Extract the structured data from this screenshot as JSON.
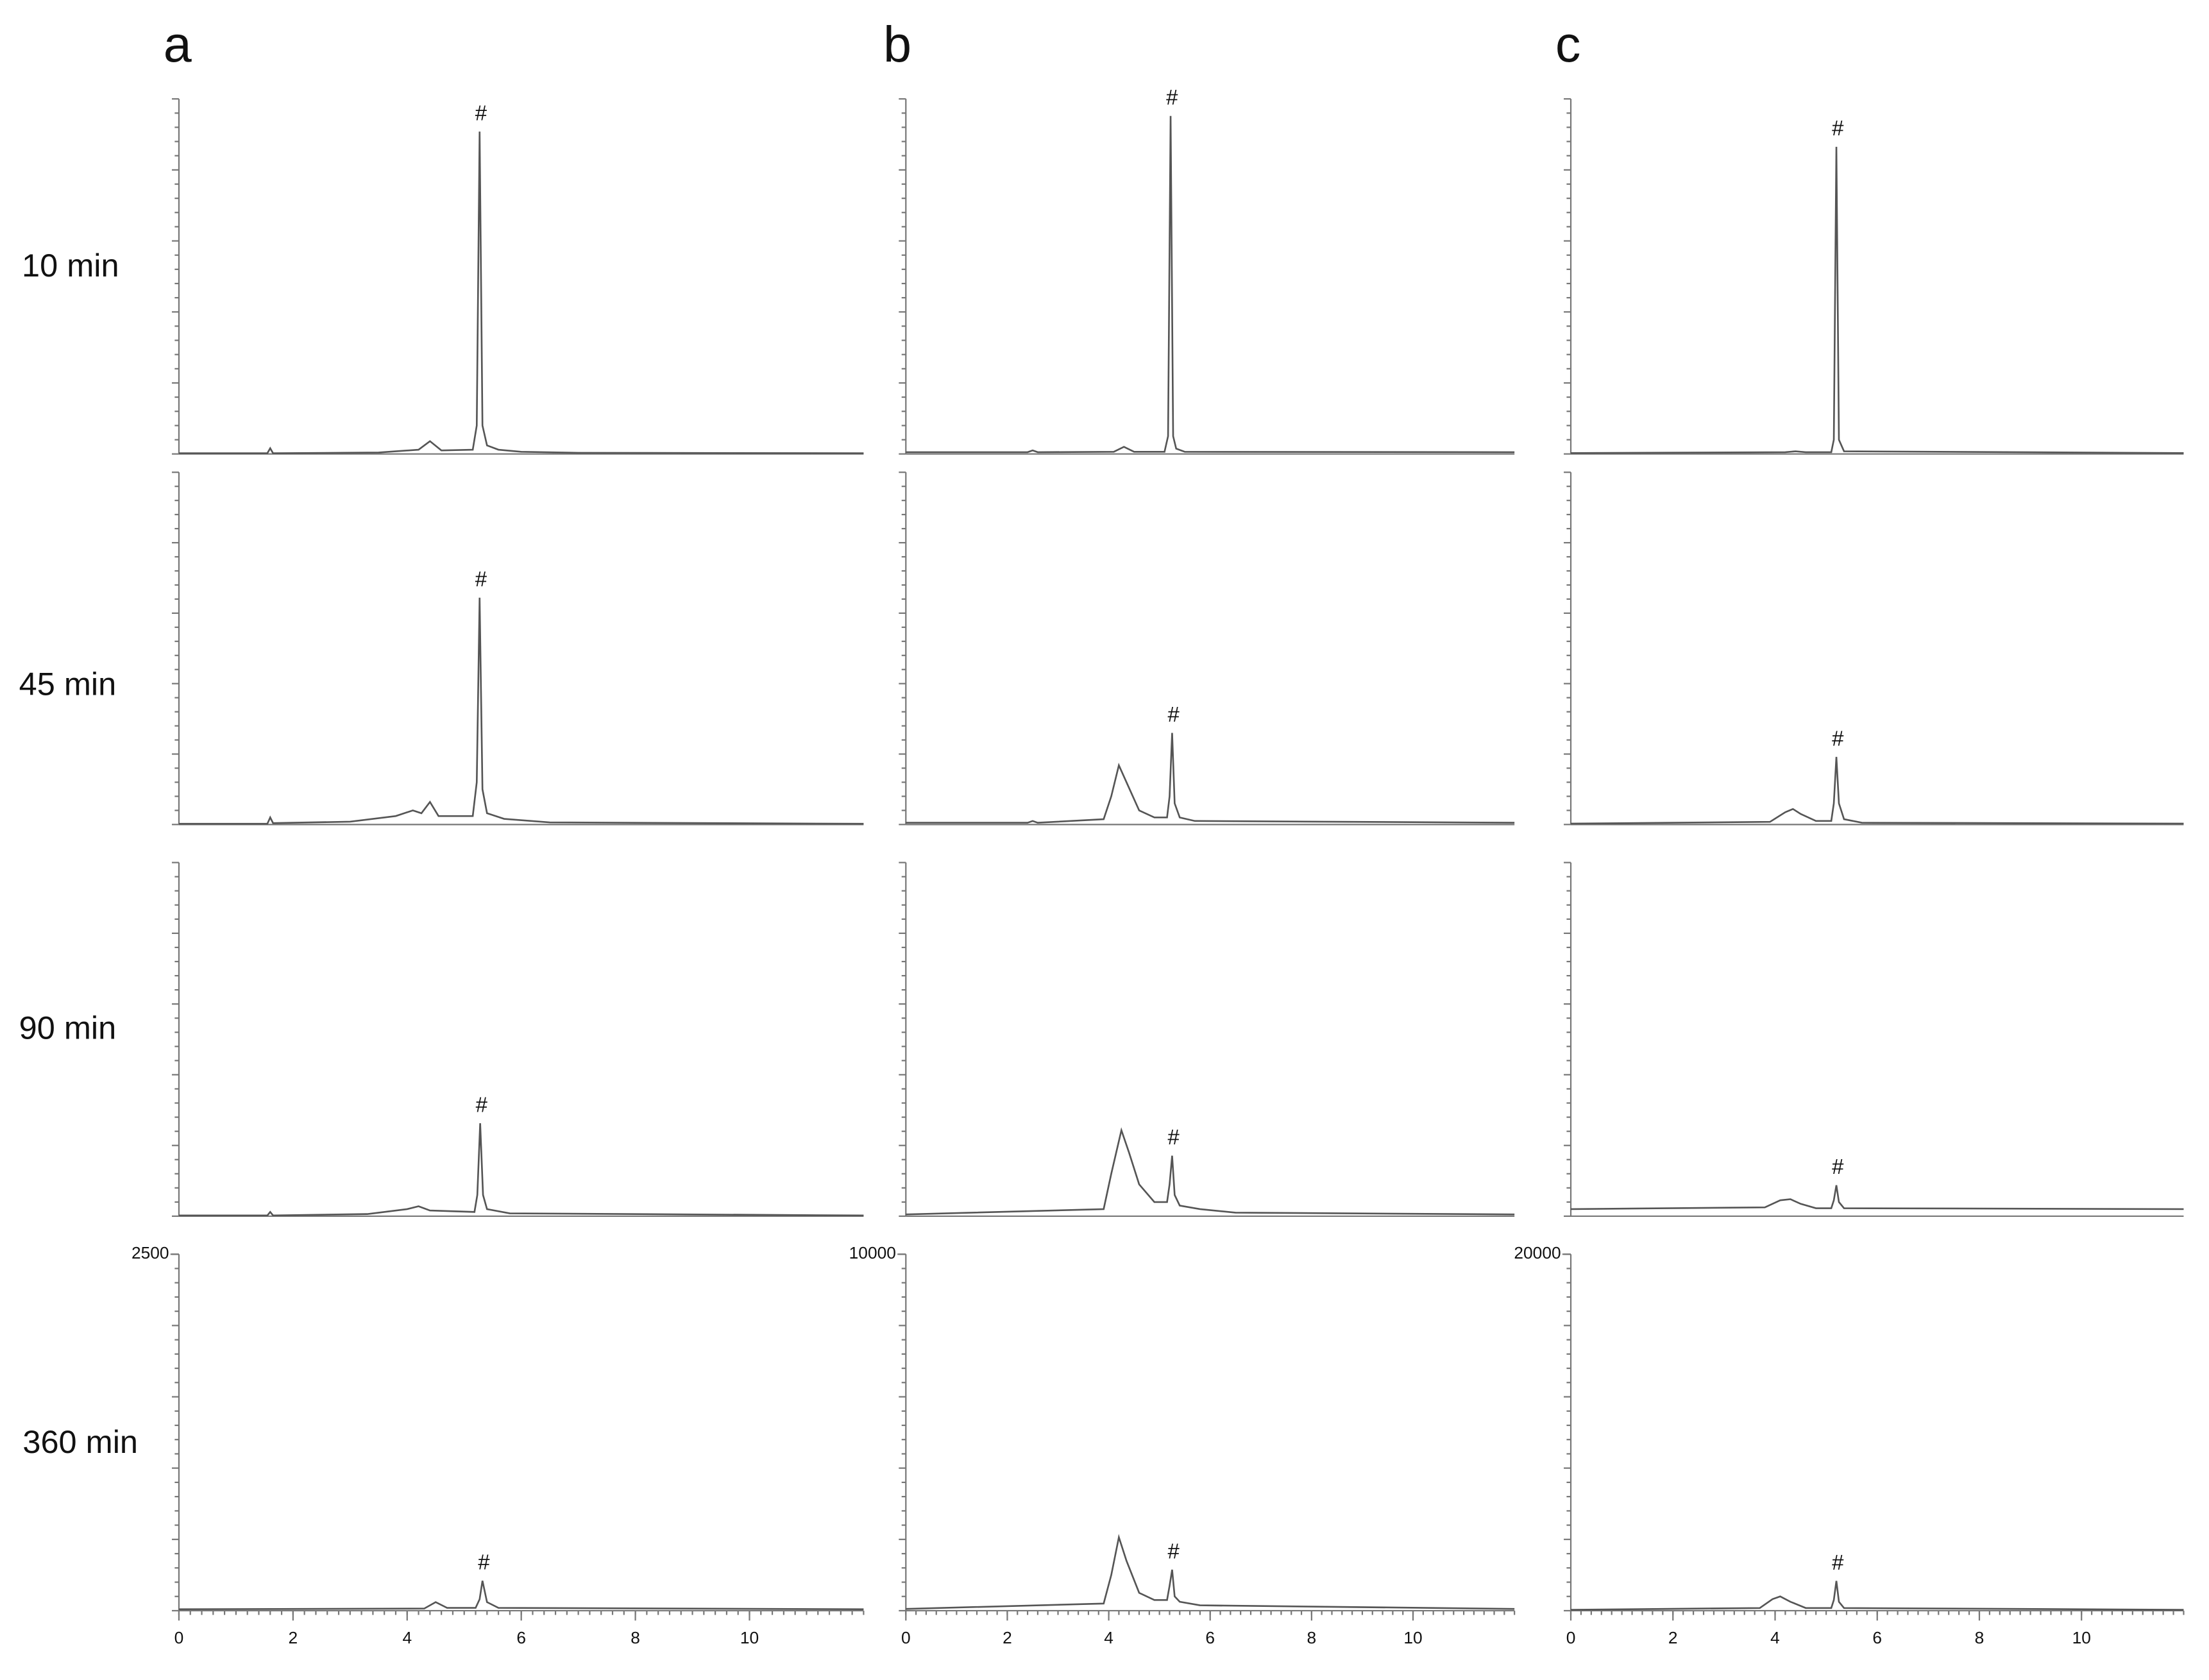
{
  "panel_labels": [
    "a",
    "b",
    "c"
  ],
  "row_labels": [
    "10 min",
    "45 min",
    "90 min",
    "360 min"
  ],
  "chart_data": [
    {
      "type": "line",
      "xlim": [
        0,
        12
      ],
      "ylim": [
        0,
        2500
      ],
      "color": "#555555",
      "x": [
        0,
        1.55,
        1.6,
        1.65,
        3.5,
        4.2,
        4.4,
        4.6,
        5.15,
        5.22,
        5.27,
        5.32,
        5.4,
        5.6,
        6,
        7,
        12
      ],
      "values": [
        5,
        5,
        40,
        5,
        10,
        30,
        90,
        25,
        30,
        200,
        2270,
        200,
        60,
        30,
        15,
        8,
        5
      ],
      "annotations": [
        {
          "text": "#",
          "x": 5.27
        }
      ]
    },
    {
      "type": "line",
      "xlim": [
        0,
        12
      ],
      "ylim": [
        0,
        2500
      ],
      "color": "#555555",
      "x": [
        0,
        1.55,
        1.6,
        1.65,
        3,
        3.8,
        4.1,
        4.25,
        4.4,
        4.55,
        5.15,
        5.22,
        5.27,
        5.32,
        5.4,
        5.7,
        6.5,
        12
      ],
      "values": [
        5,
        5,
        50,
        10,
        20,
        60,
        100,
        80,
        160,
        60,
        60,
        300,
        1610,
        250,
        80,
        40,
        15,
        5
      ],
      "annotations": [
        {
          "text": "#",
          "x": 5.27
        }
      ]
    },
    {
      "type": "line",
      "xlim": [
        0,
        12
      ],
      "ylim": [
        0,
        2500
      ],
      "color": "#555555",
      "x": [
        0,
        1.55,
        1.6,
        1.65,
        3.3,
        4,
        4.2,
        4.4,
        5.18,
        5.23,
        5.28,
        5.33,
        5.4,
        5.8,
        12
      ],
      "values": [
        5,
        5,
        30,
        5,
        15,
        50,
        70,
        40,
        30,
        150,
        657,
        150,
        50,
        20,
        5
      ],
      "annotations": [
        {
          "text": "#",
          "x": 5.28
        }
      ]
    },
    {
      "type": "line",
      "xlim": [
        0,
        12
      ],
      "ylim": [
        0,
        2500
      ],
      "yticks": [
        2500
      ],
      "xticks": [
        0,
        2,
        4,
        6,
        8,
        10
      ],
      "color": "#555555",
      "x": [
        0,
        4.3,
        4.5,
        4.7,
        5.2,
        5.27,
        5.32,
        5.4,
        5.6,
        12
      ],
      "values": [
        10,
        15,
        60,
        20,
        20,
        80,
        210,
        60,
        20,
        10
      ],
      "annotations": [
        {
          "text": "#",
          "x": 5.32
        }
      ]
    },
    {
      "type": "line",
      "xlim": [
        0,
        12
      ],
      "ylim": [
        0,
        10000
      ],
      "color": "#555555",
      "x": [
        0,
        2.4,
        2.5,
        2.6,
        4.1,
        4.3,
        4.5,
        5.1,
        5.17,
        5.22,
        5.27,
        5.33,
        5.5,
        12
      ],
      "values": [
        50,
        50,
        100,
        50,
        60,
        200,
        60,
        60,
        500,
        9520,
        500,
        150,
        60,
        50
      ],
      "annotations": [
        {
          "text": "#",
          "x": 5.22
        }
      ]
    },
    {
      "type": "line",
      "xlim": [
        0,
        12
      ],
      "ylim": [
        0,
        10000
      ],
      "color": "#555555",
      "x": [
        0,
        2.4,
        2.5,
        2.6,
        3.9,
        4.05,
        4.2,
        4.35,
        4.6,
        4.9,
        5.15,
        5.2,
        5.25,
        5.3,
        5.4,
        5.7,
        12
      ],
      "values": [
        50,
        50,
        100,
        50,
        150,
        800,
        1680,
        1200,
        400,
        200,
        200,
        800,
        2600,
        600,
        200,
        100,
        50
      ],
      "annotations": [
        {
          "text": "#",
          "x": 5.25
        }
      ]
    },
    {
      "type": "line",
      "xlim": [
        0,
        12
      ],
      "ylim": [
        0,
        10000
      ],
      "color": "#555555",
      "x": [
        0,
        3.9,
        4.05,
        4.25,
        4.4,
        4.6,
        4.9,
        5.15,
        5.2,
        5.25,
        5.3,
        5.4,
        5.8,
        6.5,
        12
      ],
      "values": [
        50,
        200,
        1200,
        2430,
        1800,
        900,
        400,
        400,
        900,
        1710,
        600,
        300,
        200,
        100,
        50
      ],
      "annotations": [
        {
          "text": "#",
          "x": 5.25
        }
      ]
    },
    {
      "type": "line",
      "xlim": [
        0,
        12
      ],
      "ylim": [
        0,
        10000
      ],
      "yticks": [
        10000
      ],
      "xticks": [
        0,
        2,
        4,
        6,
        8,
        10
      ],
      "color": "#555555",
      "x": [
        0,
        3.9,
        4.05,
        4.2,
        4.35,
        4.6,
        4.9,
        5.15,
        5.2,
        5.25,
        5.3,
        5.4,
        5.8,
        12
      ],
      "values": [
        50,
        200,
        1000,
        2060,
        1400,
        500,
        300,
        300,
        700,
        1150,
        400,
        250,
        150,
        50
      ],
      "annotations": [
        {
          "text": "#",
          "x": 5.25
        }
      ]
    },
    {
      "type": "line",
      "xlim": [
        0,
        12
      ],
      "ylim": [
        0,
        20000
      ],
      "color": "#555555",
      "x": [
        0,
        4.2,
        4.4,
        4.6,
        5.1,
        5.15,
        5.2,
        5.25,
        5.35,
        12
      ],
      "values": [
        50,
        100,
        150,
        100,
        100,
        800,
        17300,
        800,
        150,
        50
      ],
      "annotations": [
        {
          "text": "#",
          "x": 5.2
        }
      ]
    },
    {
      "type": "line",
      "xlim": [
        0,
        12
      ],
      "ylim": [
        0,
        20000
      ],
      "color": "#555555",
      "x": [
        0,
        3.9,
        4.2,
        4.35,
        4.5,
        4.8,
        5.1,
        5.15,
        5.2,
        5.25,
        5.35,
        5.7,
        12
      ],
      "values": [
        50,
        150,
        700,
        880,
        600,
        200,
        200,
        1200,
        3840,
        1200,
        300,
        100,
        50
      ],
      "annotations": [
        {
          "text": "#",
          "x": 5.2
        }
      ]
    },
    {
      "type": "line",
      "xlim": [
        0,
        12
      ],
      "ylim": [
        0,
        20000
      ],
      "color": "#555555",
      "x": [
        0,
        3.8,
        4.1,
        4.3,
        4.5,
        4.8,
        5.1,
        5.15,
        5.2,
        5.25,
        5.35,
        12
      ],
      "values": [
        400,
        500,
        900,
        960,
        700,
        450,
        450,
        900,
        1750,
        800,
        450,
        400
      ],
      "annotations": [
        {
          "text": "#",
          "x": 5.2
        }
      ]
    },
    {
      "type": "line",
      "xlim": [
        0,
        12
      ],
      "ylim": [
        0,
        20000
      ],
      "yticks": [
        20000
      ],
      "xticks": [
        0,
        2,
        4,
        6,
        8,
        10
      ],
      "color": "#555555",
      "x": [
        0,
        3.7,
        3.95,
        4.1,
        4.3,
        4.6,
        5.1,
        5.15,
        5.2,
        5.25,
        5.35,
        12
      ],
      "values": [
        50,
        150,
        650,
        800,
        500,
        150,
        150,
        600,
        1670,
        500,
        150,
        50
      ],
      "annotations": [
        {
          "text": "#",
          "x": 5.2
        }
      ]
    }
  ]
}
